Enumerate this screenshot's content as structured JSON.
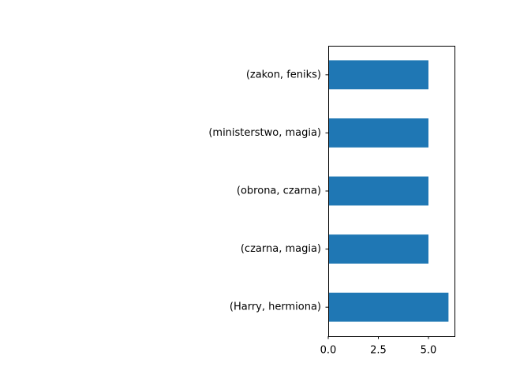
{
  "chart_data": {
    "type": "bar",
    "orientation": "horizontal",
    "categories": [
      "(Harry, hermiona)",
      "(czarna, magia)",
      "(obrona, czarna)",
      "(ministerstwo, magia)",
      "(zakon, feniks)"
    ],
    "values": [
      6,
      5,
      5,
      5,
      5
    ],
    "title": "",
    "xlabel": "",
    "ylabel": "",
    "xlim": [
      0,
      6.3
    ],
    "x_ticks": [
      "0.0",
      "2.5",
      "5.0"
    ],
    "x_tick_values": [
      0,
      2.5,
      5.0
    ],
    "grid": false,
    "colors": {
      "bar": "#1f77b4",
      "axis": "#000000",
      "background": "#ffffff"
    }
  }
}
